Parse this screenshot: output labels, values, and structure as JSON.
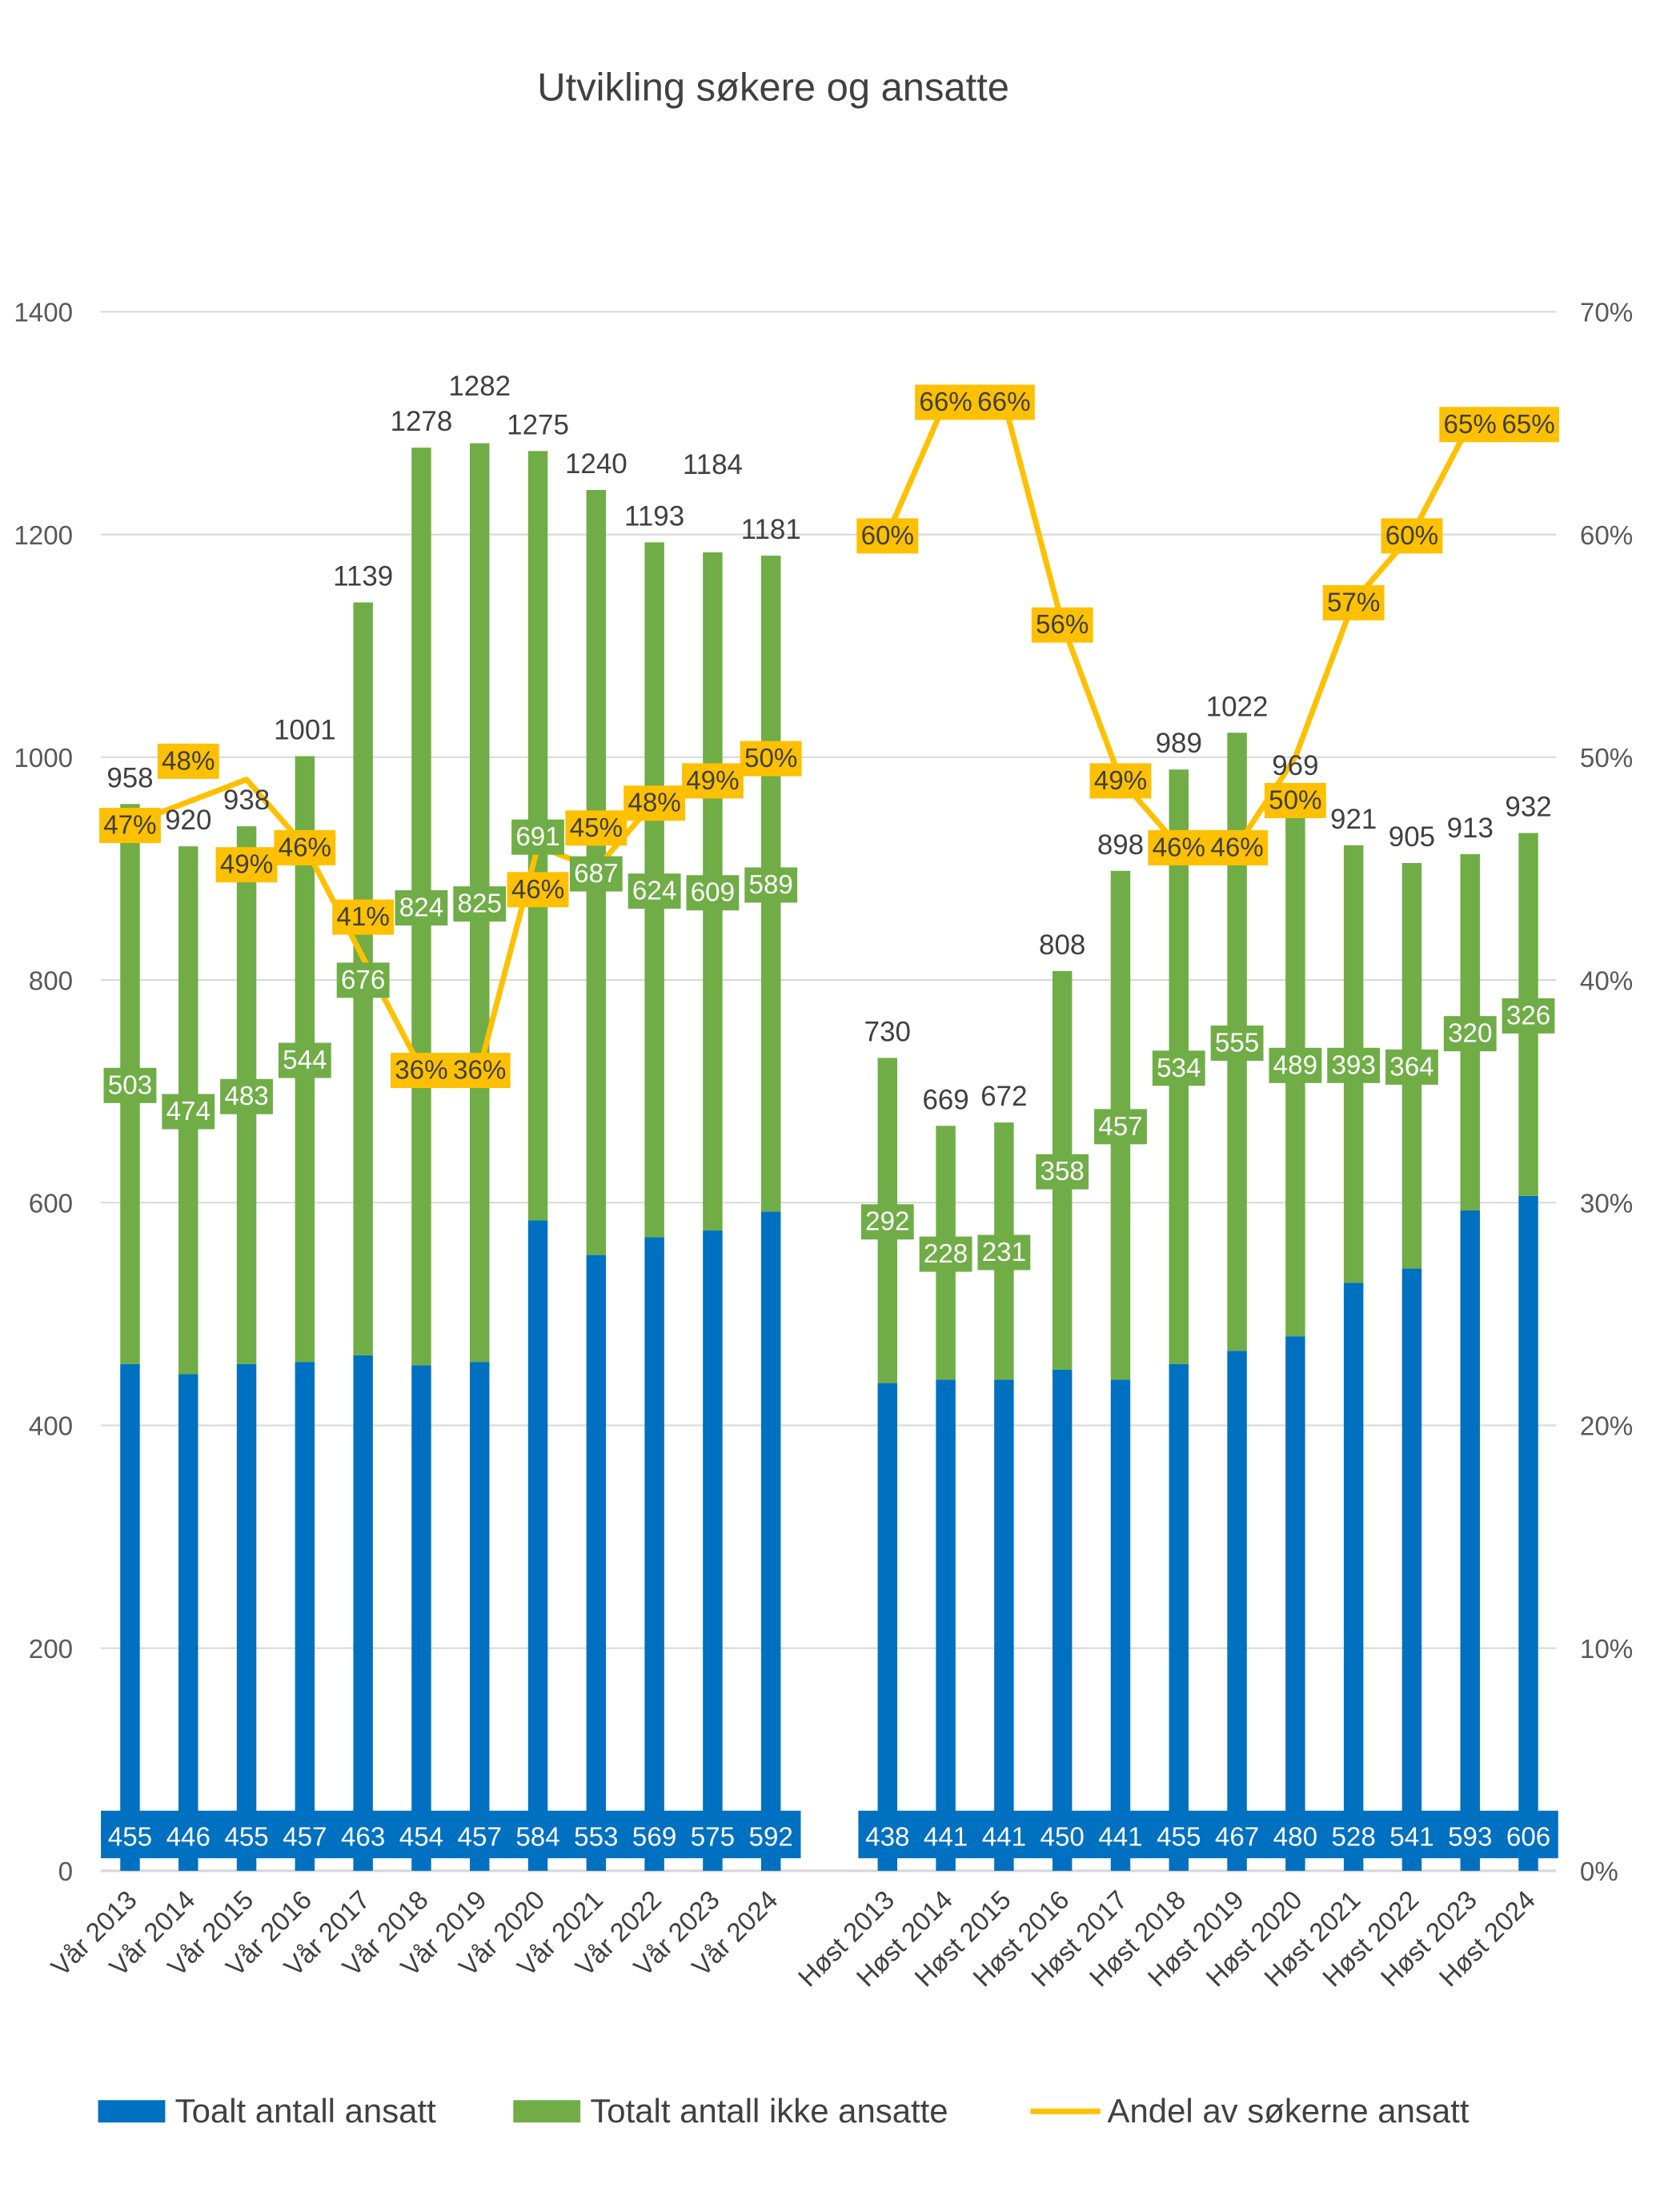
{
  "chart_data": {
    "type": "bar",
    "stacked": true,
    "title": "Utvikling søkere og ansatte",
    "categories": [
      "Vår 2013",
      "Vår 2014",
      "Vår 2015",
      "Vår 2016",
      "Vår 2017",
      "Vår 2018",
      "Vår 2019",
      "Vår 2020",
      "Vår 2021",
      "Vår 2022",
      "Vår 2023",
      "Vår 2024",
      "",
      "Høst 2013",
      "Høst 2014",
      "Høst 2015",
      "Høst 2016",
      "Høst 2017",
      "Høst 2018",
      "Høst 2019",
      "Høst 2020",
      "Høst 2021",
      "Høst 2022",
      "Høst 2023",
      "Høst 2024"
    ],
    "series": [
      {
        "name": "Toalt antall ansatt",
        "type": "bar",
        "axis": "left",
        "color": "#0070C0",
        "values": [
          455,
          446,
          455,
          457,
          463,
          454,
          457,
          584,
          553,
          569,
          575,
          592,
          null,
          438,
          441,
          441,
          450,
          441,
          455,
          467,
          480,
          528,
          541,
          593,
          606
        ]
      },
      {
        "name": "Totalt antall ikke ansatte",
        "type": "bar",
        "axis": "left",
        "color": "#70AD47",
        "values": [
          503,
          474,
          483,
          544,
          676,
          824,
          825,
          691,
          687,
          624,
          609,
          589,
          null,
          292,
          228,
          231,
          358,
          457,
          534,
          555,
          489,
          393,
          364,
          320,
          326
        ]
      },
      {
        "name": "Andel av søkerne ansatt",
        "type": "line",
        "axis": "right",
        "color": "#FFC000",
        "values": [
          47,
          48,
          49,
          46,
          41,
          36,
          36,
          46,
          45,
          48,
          49,
          50,
          null,
          60,
          66,
          66,
          56,
          49,
          46,
          46,
          50,
          57,
          60,
          65,
          65
        ]
      }
    ],
    "totals": [
      958,
      920,
      938,
      1001,
      1139,
      1278,
      1282,
      1275,
      1240,
      1193,
      1184,
      1181,
      null,
      730,
      669,
      672,
      808,
      898,
      989,
      1022,
      969,
      921,
      905,
      913,
      932
    ],
    "y_left": {
      "range": [
        0,
        1400
      ],
      "ticks": [
        "0",
        "200",
        "400",
        "600",
        "800",
        "1000",
        "1200",
        "1400"
      ]
    },
    "y_right": {
      "range": [
        0,
        70
      ],
      "ticks": [
        "0%",
        "10%",
        "20%",
        "30%",
        "40%",
        "50%",
        "60%",
        "70%"
      ],
      "unit": "%"
    },
    "grid": true,
    "legend": "bottom"
  }
}
